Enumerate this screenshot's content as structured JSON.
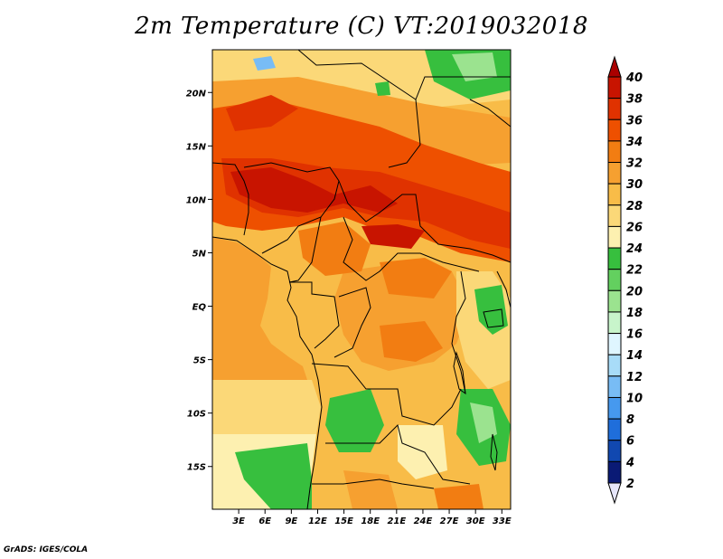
{
  "title": "2m Temperature (C) VT:2019032018",
  "credit": "GrADS: IGES/COLA",
  "map": {
    "lon_range": [
      0,
      34
    ],
    "lat_range": [
      -19,
      24
    ],
    "lat_ticks": [
      {
        "value": 20,
        "label": "20N"
      },
      {
        "value": 15,
        "label": "15N"
      },
      {
        "value": 10,
        "label": "10N"
      },
      {
        "value": 5,
        "label": "5N"
      },
      {
        "value": 0,
        "label": "EQ"
      },
      {
        "value": -5,
        "label": "5S"
      },
      {
        "value": -10,
        "label": "10S"
      },
      {
        "value": -15,
        "label": "15S"
      }
    ],
    "lon_ticks": [
      {
        "value": 3,
        "label": "3E"
      },
      {
        "value": 6,
        "label": "6E"
      },
      {
        "value": 9,
        "label": "9E"
      },
      {
        "value": 12,
        "label": "12E"
      },
      {
        "value": 15,
        "label": "15E"
      },
      {
        "value": 18,
        "label": "18E"
      },
      {
        "value": 21,
        "label": "21E"
      },
      {
        "value": 24,
        "label": "24E"
      },
      {
        "value": 27,
        "label": "27E"
      },
      {
        "value": 30,
        "label": "30E"
      },
      {
        "value": 33,
        "label": "33E"
      }
    ]
  },
  "colorbar": {
    "levels": [
      40,
      38,
      36,
      34,
      32,
      30,
      28,
      26,
      24,
      22,
      20,
      18,
      16,
      14,
      12,
      10,
      8,
      6,
      4,
      2
    ],
    "colors": [
      "#aa0000",
      "#c81400",
      "#e03200",
      "#ee5000",
      "#f27d12",
      "#f6a030",
      "#f8bc48",
      "#fbd878",
      "#fdf0b0",
      "#37bf3e",
      "#63d05f",
      "#9be38f",
      "#c8f5cb",
      "#dff6ff",
      "#a8dcf8",
      "#78bcf5",
      "#4699ef",
      "#1f6edb",
      "#1148b0",
      "#0a1a75",
      "#e6e6fa"
    ]
  }
}
